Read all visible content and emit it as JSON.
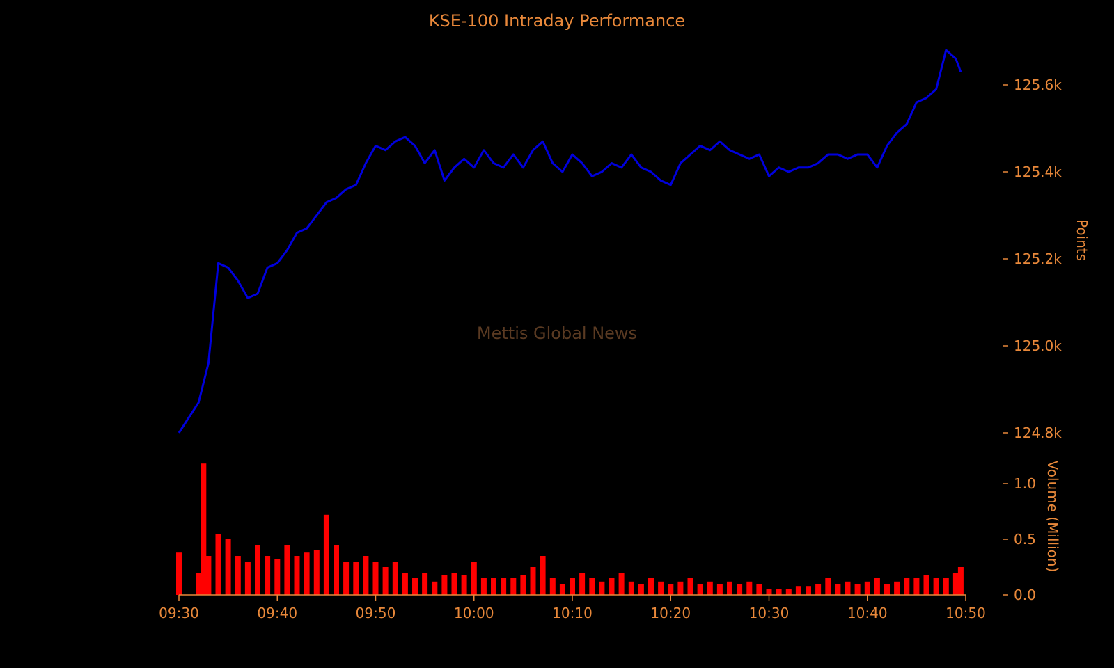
{
  "colors": {
    "background": "#000000",
    "text": "#e8883a",
    "price_line": "#0000dd",
    "volume_bar": "#ff0000",
    "watermark": "#5a3a22"
  },
  "chart_data": [
    {
      "type": "line",
      "title": "KSE-100 Intraday Performance",
      "ylabel": "Points",
      "y_axis_side": "right",
      "ylim": [
        124780,
        125700
      ],
      "yticks": [
        124800,
        125000,
        125200,
        125400,
        125600
      ],
      "ytick_labels": [
        "124.8k",
        "125.0k",
        "125.2k",
        "125.4k",
        "125.6k"
      ],
      "series": [
        {
          "x": [
            "09:30",
            "09:32",
            "09:33",
            "09:34",
            "09:35",
            "09:36",
            "09:37",
            "09:38",
            "09:39",
            "09:40",
            "09:41",
            "09:42",
            "09:43",
            "09:44",
            "09:45",
            "09:46",
            "09:47",
            "09:48",
            "09:49",
            "09:50",
            "09:51",
            "09:52",
            "09:53",
            "09:54",
            "09:55",
            "09:56",
            "09:57",
            "09:58",
            "09:59",
            "10:00",
            "10:01",
            "10:02",
            "10:03",
            "10:04",
            "10:05",
            "10:06",
            "10:07",
            "10:08",
            "10:09",
            "10:10",
            "10:11",
            "10:12",
            "10:13",
            "10:14",
            "10:15",
            "10:16",
            "10:17",
            "10:18",
            "10:19",
            "10:20",
            "10:21",
            "10:22",
            "10:23",
            "10:24",
            "10:25",
            "10:26",
            "10:27",
            "10:28",
            "10:29",
            "10:30",
            "10:31",
            "10:32",
            "10:33",
            "10:34",
            "10:35",
            "10:36",
            "10:37",
            "10:38",
            "10:39",
            "10:40",
            "10:41",
            "10:42",
            "10:43",
            "10:44",
            "10:45",
            "10:46",
            "10:47",
            "10:48",
            "10:49",
            "10:49:30"
          ],
          "y": [
            124800,
            124870,
            124960,
            125190,
            125180,
            125150,
            125110,
            125120,
            125180,
            125190,
            125220,
            125260,
            125270,
            125300,
            125330,
            125340,
            125360,
            125370,
            125420,
            125460,
            125450,
            125470,
            125480,
            125460,
            125420,
            125450,
            125380,
            125410,
            125430,
            125410,
            125450,
            125420,
            125410,
            125440,
            125410,
            125450,
            125470,
            125420,
            125400,
            125440,
            125420,
            125390,
            125400,
            125420,
            125410,
            125440,
            125410,
            125400,
            125380,
            125370,
            125420,
            125440,
            125460,
            125450,
            125470,
            125450,
            125440,
            125430,
            125440,
            125390,
            125410,
            125400,
            125410,
            125410,
            125420,
            125440,
            125440,
            125430,
            125440,
            125440,
            125410,
            125460,
            125490,
            125510,
            125560,
            125570,
            125590,
            125680,
            125660,
            125630
          ]
        }
      ]
    },
    {
      "type": "bar",
      "ylabel": "Volume (Million)",
      "y_axis_side": "right",
      "ylim": [
        0,
        1.2
      ],
      "yticks": [
        0.0,
        0.5,
        1.0
      ],
      "ytick_labels": [
        "0.0",
        "0.5",
        "1.0"
      ],
      "xlim": [
        "09:30",
        "10:50"
      ],
      "xticks": [
        "09:30",
        "09:40",
        "09:50",
        "10:00",
        "10:10",
        "10:20",
        "10:30",
        "10:40",
        "10:50"
      ],
      "series": [
        {
          "x": [
            "09:30",
            "09:32",
            "09:32:30",
            "09:33",
            "09:34",
            "09:35",
            "09:36",
            "09:37",
            "09:38",
            "09:39",
            "09:40",
            "09:41",
            "09:42",
            "09:43",
            "09:44",
            "09:45",
            "09:46",
            "09:47",
            "09:48",
            "09:49",
            "09:50",
            "09:51",
            "09:52",
            "09:53",
            "09:54",
            "09:55",
            "09:56",
            "09:57",
            "09:58",
            "09:59",
            "10:00",
            "10:01",
            "10:02",
            "10:03",
            "10:04",
            "10:05",
            "10:06",
            "10:07",
            "10:08",
            "10:09",
            "10:10",
            "10:11",
            "10:12",
            "10:13",
            "10:14",
            "10:15",
            "10:16",
            "10:17",
            "10:18",
            "10:19",
            "10:20",
            "10:21",
            "10:22",
            "10:23",
            "10:24",
            "10:25",
            "10:26",
            "10:27",
            "10:28",
            "10:29",
            "10:30",
            "10:31",
            "10:32",
            "10:33",
            "10:34",
            "10:35",
            "10:36",
            "10:37",
            "10:38",
            "10:39",
            "10:40",
            "10:41",
            "10:42",
            "10:43",
            "10:44",
            "10:45",
            "10:46",
            "10:47",
            "10:48",
            "10:49",
            "10:49:30"
          ],
          "y": [
            0.38,
            0.2,
            1.18,
            0.35,
            0.55,
            0.5,
            0.35,
            0.3,
            0.45,
            0.35,
            0.32,
            0.45,
            0.35,
            0.38,
            0.4,
            0.72,
            0.45,
            0.3,
            0.3,
            0.35,
            0.3,
            0.25,
            0.3,
            0.2,
            0.15,
            0.2,
            0.12,
            0.18,
            0.2,
            0.18,
            0.3,
            0.15,
            0.15,
            0.15,
            0.15,
            0.18,
            0.25,
            0.35,
            0.15,
            0.1,
            0.15,
            0.2,
            0.15,
            0.12,
            0.15,
            0.2,
            0.12,
            0.1,
            0.15,
            0.12,
            0.1,
            0.12,
            0.15,
            0.1,
            0.12,
            0.1,
            0.12,
            0.1,
            0.12,
            0.1,
            0.05,
            0.05,
            0.05,
            0.08,
            0.08,
            0.1,
            0.15,
            0.1,
            0.12,
            0.1,
            0.12,
            0.15,
            0.1,
            0.12,
            0.15,
            0.15,
            0.18,
            0.15,
            0.15,
            0.2,
            0.25
          ]
        }
      ]
    }
  ],
  "watermark": "Mettis Global News"
}
